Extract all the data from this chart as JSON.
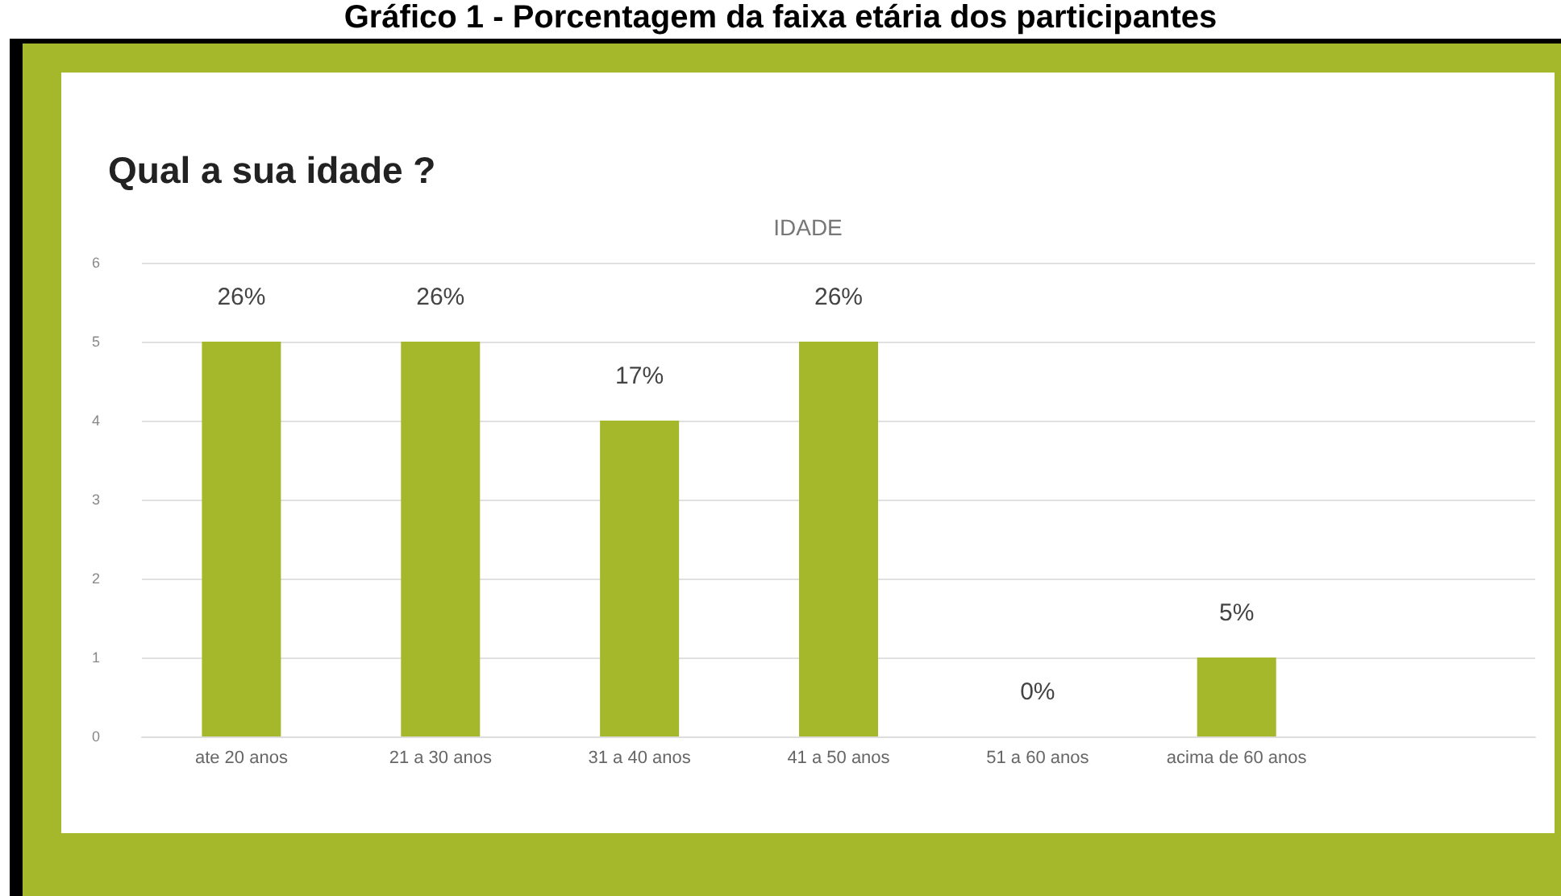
{
  "chart_data": {
    "type": "bar",
    "title": "Qual a sua idade ?",
    "subtitle": "IDADE",
    "annotations": [
      "Gráfico 1 - Porcentagem da faixa etária dos participantes",
      {
        "text": "26%",
        "x": "ate 20 anos",
        "y": 5
      },
      {
        "text": "26%",
        "x": "21 a 30 anos",
        "y": 5
      },
      {
        "text": "17%",
        "x": "31 a 40 anos",
        "y": 4
      },
      {
        "text": "26%",
        "x": "41 a 50 anos",
        "y": 5
      },
      {
        "text": "0%",
        "x": "51 a 60 anos",
        "y": 0
      },
      {
        "text": "5%",
        "x": "acima de 60 anos",
        "y": 1
      }
    ],
    "categories": [
      "ate 20 anos",
      "21 a 30 anos",
      "31 a 40 anos",
      "41 a 50 anos",
      "51 a 60 anos",
      "acima de 60 anos",
      null
    ],
    "values": [
      5,
      5,
      4,
      5,
      0,
      1,
      null
    ],
    "color": "#a5b72a",
    "ylim": [
      0,
      6
    ],
    "yticks": [
      0,
      1,
      2,
      3,
      4,
      5,
      6
    ],
    "grid": "y"
  }
}
